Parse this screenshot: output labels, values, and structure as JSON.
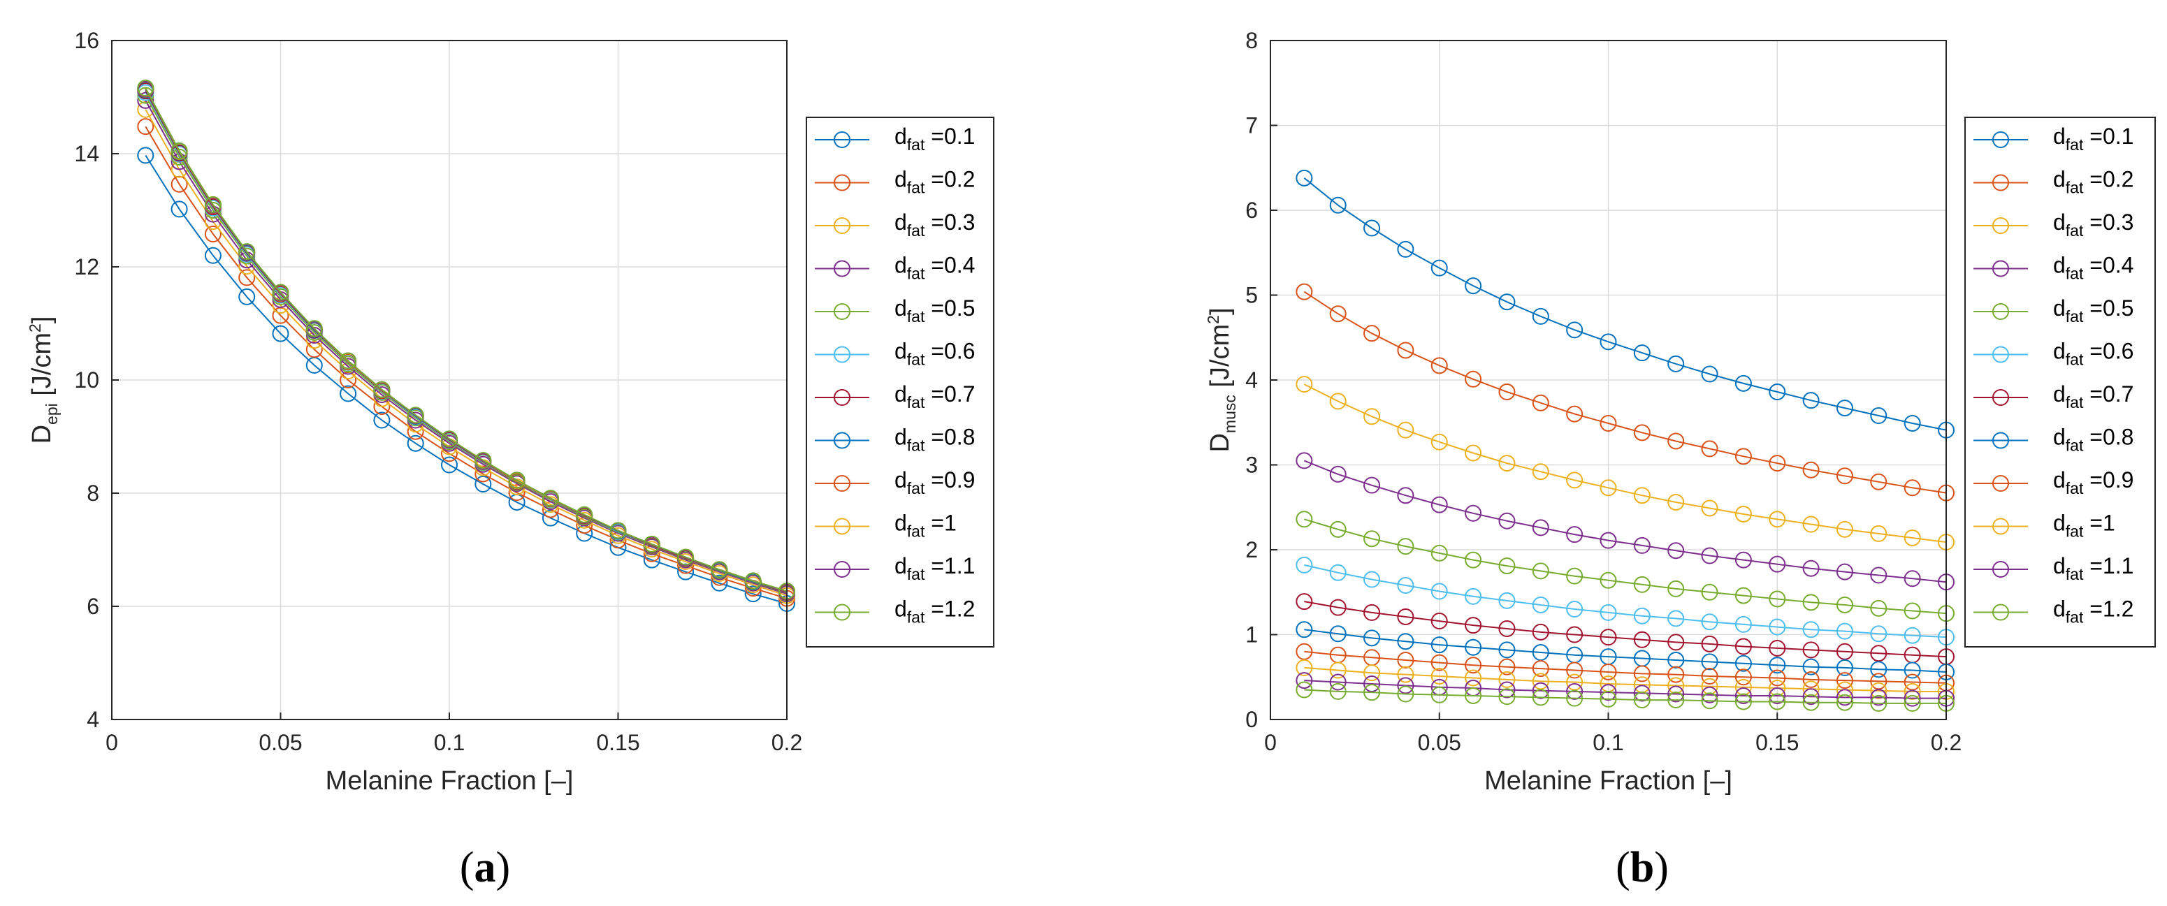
{
  "chart_data": [
    {
      "type": "line",
      "panel_label": "a",
      "xlabel": "Melanine Fraction [–]",
      "ylabel": {
        "main": "D",
        "sub": "epi",
        "unit": " [J/cm",
        "sup": "2",
        "close": "]"
      },
      "xlim": [
        0,
        0.2
      ],
      "ylim": [
        4,
        16
      ],
      "xticks": [
        0,
        0.05,
        0.1,
        0.15,
        0.2
      ],
      "xtick_labels": [
        "0",
        "0.05",
        "0.1",
        "0.15",
        "0.2"
      ],
      "yticks": [
        4,
        6,
        8,
        10,
        12,
        14,
        16
      ],
      "ytick_labels": [
        "4",
        "6",
        "8",
        "10",
        "12",
        "14",
        "16"
      ],
      "grid": true,
      "marker": "circle",
      "legend_position": "right-outside",
      "x": [
        0.01,
        0.02,
        0.03,
        0.04,
        0.05,
        0.06,
        0.07,
        0.08,
        0.09,
        0.1,
        0.11,
        0.12,
        0.13,
        0.14,
        0.15,
        0.16,
        0.17,
        0.18,
        0.19,
        0.2
      ],
      "series": [
        {
          "name": "d_fat=0.1",
          "label_main": "d",
          "label_sub": "fat",
          "label_value": " =0.1",
          "color": "#0072BD",
          "values": [
            13.97,
            13.02,
            12.2,
            11.47,
            10.82,
            10.26,
            9.76,
            9.29,
            8.88,
            8.5,
            8.16,
            7.84,
            7.56,
            7.29,
            7.04,
            6.82,
            6.61,
            6.41,
            6.22,
            6.05
          ]
        },
        {
          "name": "d_fat=0.2",
          "label_main": "d",
          "label_sub": "fat",
          "label_value": " =0.2",
          "color": "#D95319",
          "values": [
            14.48,
            13.46,
            12.58,
            11.81,
            11.14,
            10.54,
            10.0,
            9.53,
            9.09,
            8.7,
            8.34,
            8.01,
            7.71,
            7.43,
            7.17,
            6.93,
            6.72,
            6.51,
            6.32,
            6.14
          ]
        },
        {
          "name": "d_fat=0.3",
          "label_main": "d",
          "label_sub": "fat",
          "label_value": " =0.3",
          "color": "#EDB120",
          "values": [
            14.78,
            13.72,
            12.8,
            12.01,
            11.32,
            10.7,
            10.16,
            9.67,
            9.22,
            8.82,
            8.45,
            8.11,
            7.8,
            7.52,
            7.25,
            7.01,
            6.79,
            6.58,
            6.38,
            6.19
          ]
        },
        {
          "name": "d_fat=0.4",
          "label_main": "d",
          "label_sub": "fat",
          "label_value": " =0.4",
          "color": "#7E2F8E",
          "values": [
            14.94,
            13.86,
            12.93,
            12.12,
            11.42,
            10.79,
            10.24,
            9.74,
            9.29,
            8.88,
            8.51,
            8.17,
            7.85,
            7.56,
            7.29,
            7.05,
            6.82,
            6.61,
            6.41,
            6.22
          ]
        },
        {
          "name": "d_fat=0.5",
          "label_main": "d",
          "label_sub": "fat",
          "label_value": " =0.5",
          "color": "#77AC30",
          "values": [
            15.03,
            13.94,
            13.0,
            12.19,
            11.47,
            10.84,
            10.28,
            9.78,
            9.33,
            8.91,
            8.54,
            8.19,
            7.88,
            7.58,
            7.31,
            7.07,
            6.84,
            6.63,
            6.43,
            6.24
          ]
        },
        {
          "name": "d_fat=0.6",
          "label_main": "d",
          "label_sub": "fat",
          "label_value": " =0.6",
          "color": "#4DBEEE",
          "values": [
            15.08,
            13.99,
            13.04,
            12.22,
            11.5,
            10.87,
            10.31,
            9.8,
            9.35,
            8.93,
            8.55,
            8.21,
            7.89,
            7.6,
            7.32,
            7.08,
            6.85,
            6.64,
            6.44,
            6.25
          ]
        },
        {
          "name": "d_fat=0.7",
          "label_main": "d",
          "label_sub": "fat",
          "label_value": " =0.7",
          "color": "#A2142F",
          "values": [
            15.11,
            14.01,
            13.06,
            12.24,
            11.52,
            10.88,
            10.32,
            9.81,
            9.36,
            8.94,
            8.56,
            8.21,
            7.9,
            7.6,
            7.33,
            7.08,
            6.85,
            6.64,
            6.44,
            6.25
          ]
        },
        {
          "name": "d_fat=0.8",
          "label_main": "d",
          "label_sub": "fat",
          "label_value": " =0.8",
          "color": "#0072BD",
          "values": [
            15.13,
            14.03,
            13.08,
            12.25,
            11.53,
            10.89,
            10.33,
            9.82,
            9.36,
            8.95,
            8.57,
            8.22,
            7.9,
            7.61,
            7.33,
            7.09,
            6.86,
            6.64,
            6.44,
            6.26
          ]
        },
        {
          "name": "d_fat=0.9",
          "label_main": "d",
          "label_sub": "fat",
          "label_value": " =0.9",
          "color": "#D95319",
          "values": [
            15.14,
            14.04,
            13.08,
            12.26,
            11.53,
            10.9,
            10.33,
            9.82,
            9.37,
            8.95,
            8.57,
            8.22,
            7.9,
            7.61,
            7.34,
            7.09,
            6.86,
            6.65,
            6.45,
            6.26
          ]
        },
        {
          "name": "d_fat=1",
          "label_main": "d",
          "label_sub": "fat",
          "label_value": " =1",
          "color": "#EDB120",
          "values": [
            15.15,
            14.04,
            13.09,
            12.26,
            11.54,
            10.9,
            10.33,
            9.83,
            9.37,
            8.95,
            8.57,
            8.22,
            7.91,
            7.61,
            7.34,
            7.09,
            6.86,
            6.65,
            6.45,
            6.26
          ]
        },
        {
          "name": "d_fat=1.1",
          "label_main": "d",
          "label_sub": "fat",
          "label_value": " =1.1",
          "color": "#7E2F8E",
          "values": [
            15.15,
            14.05,
            13.09,
            12.26,
            11.54,
            10.9,
            10.34,
            9.83,
            9.37,
            8.95,
            8.57,
            8.23,
            7.91,
            7.61,
            7.34,
            7.09,
            6.86,
            6.65,
            6.45,
            6.26
          ]
        },
        {
          "name": "d_fat=1.2",
          "label_main": "d",
          "label_sub": "fat",
          "label_value": " =1.2",
          "color": "#77AC30",
          "values": [
            15.16,
            14.05,
            13.1,
            12.27,
            11.55,
            10.91,
            10.34,
            9.83,
            9.38,
            8.96,
            8.58,
            8.23,
            7.91,
            7.62,
            7.34,
            7.1,
            6.87,
            6.65,
            6.45,
            6.27
          ]
        }
      ]
    },
    {
      "type": "line",
      "panel_label": "b",
      "xlabel": "Melanine Fraction [–]",
      "ylabel": {
        "main": "D",
        "sub": "musc",
        "unit": " [J/cm",
        "sup": "2",
        "close": "]"
      },
      "xlim": [
        0,
        0.2
      ],
      "ylim": [
        0,
        8
      ],
      "xticks": [
        0,
        0.05,
        0.1,
        0.15,
        0.2
      ],
      "xtick_labels": [
        "0",
        "0.05",
        "0.1",
        "0.15",
        "0.2"
      ],
      "yticks": [
        0,
        1,
        2,
        3,
        4,
        5,
        6,
        7,
        8
      ],
      "ytick_labels": [
        "0",
        "1",
        "2",
        "3",
        "4",
        "5",
        "6",
        "7",
        "8"
      ],
      "grid": true,
      "marker": "circle",
      "legend_position": "right-outside",
      "x": [
        0.01,
        0.02,
        0.03,
        0.04,
        0.05,
        0.06,
        0.07,
        0.08,
        0.09,
        0.1,
        0.11,
        0.12,
        0.13,
        0.14,
        0.15,
        0.16,
        0.17,
        0.18,
        0.19,
        0.2
      ],
      "series": [
        {
          "name": "d_fat=0.1",
          "label_main": "d",
          "label_sub": "fat",
          "label_value": " =0.1",
          "color": "#0072BD",
          "values": [
            6.38,
            6.06,
            5.79,
            5.54,
            5.32,
            5.11,
            4.92,
            4.75,
            4.59,
            4.45,
            4.32,
            4.19,
            4.07,
            3.96,
            3.86,
            3.76,
            3.67,
            3.58,
            3.49,
            3.41
          ]
        },
        {
          "name": "d_fat=0.2",
          "label_main": "d",
          "label_sub": "fat",
          "label_value": " =0.2",
          "color": "#D95319",
          "values": [
            5.04,
            4.78,
            4.55,
            4.35,
            4.17,
            4.01,
            3.86,
            3.73,
            3.6,
            3.49,
            3.38,
            3.28,
            3.19,
            3.1,
            3.02,
            2.94,
            2.87,
            2.8,
            2.73,
            2.67
          ]
        },
        {
          "name": "d_fat=0.3",
          "label_main": "d",
          "label_sub": "fat",
          "label_value": " =0.3",
          "color": "#EDB120",
          "values": [
            3.95,
            3.75,
            3.57,
            3.41,
            3.27,
            3.14,
            3.02,
            2.92,
            2.82,
            2.73,
            2.64,
            2.56,
            2.49,
            2.42,
            2.36,
            2.3,
            2.24,
            2.19,
            2.14,
            2.09
          ]
        },
        {
          "name": "d_fat=0.4",
          "label_main": "d",
          "label_sub": "fat",
          "label_value": " =0.4",
          "color": "#7E2F8E",
          "values": [
            3.05,
            2.89,
            2.76,
            2.64,
            2.53,
            2.43,
            2.34,
            2.26,
            2.18,
            2.11,
            2.05,
            1.99,
            1.93,
            1.88,
            1.83,
            1.78,
            1.74,
            1.7,
            1.66,
            1.62
          ]
        },
        {
          "name": "d_fat=0.5",
          "label_main": "d",
          "label_sub": "fat",
          "label_value": " =0.5",
          "color": "#77AC30",
          "values": [
            2.36,
            2.24,
            2.13,
            2.04,
            1.96,
            1.88,
            1.81,
            1.75,
            1.69,
            1.64,
            1.59,
            1.54,
            1.5,
            1.46,
            1.42,
            1.38,
            1.35,
            1.31,
            1.28,
            1.25
          ]
        },
        {
          "name": "d_fat=0.6",
          "label_main": "d",
          "label_sub": "fat",
          "label_value": " =0.6",
          "color": "#4DBEEE",
          "values": [
            1.82,
            1.73,
            1.65,
            1.58,
            1.51,
            1.45,
            1.4,
            1.35,
            1.3,
            1.26,
            1.22,
            1.19,
            1.15,
            1.12,
            1.09,
            1.06,
            1.04,
            1.01,
            0.99,
            0.97
          ]
        },
        {
          "name": "d_fat=0.7",
          "label_main": "d",
          "label_sub": "fat",
          "label_value": " =0.7",
          "color": "#A2142F",
          "values": [
            1.39,
            1.32,
            1.26,
            1.21,
            1.16,
            1.11,
            1.07,
            1.03,
            1.0,
            0.97,
            0.94,
            0.91,
            0.89,
            0.86,
            0.84,
            0.82,
            0.8,
            0.78,
            0.76,
            0.74
          ]
        },
        {
          "name": "d_fat=0.8",
          "label_main": "d",
          "label_sub": "fat",
          "label_value": " =0.8",
          "color": "#0072BD",
          "values": [
            1.06,
            1.01,
            0.96,
            0.92,
            0.88,
            0.85,
            0.82,
            0.79,
            0.76,
            0.74,
            0.72,
            0.7,
            0.68,
            0.66,
            0.64,
            0.62,
            0.61,
            0.59,
            0.58,
            0.56
          ]
        },
        {
          "name": "d_fat=0.9",
          "label_main": "d",
          "label_sub": "fat",
          "label_value": " =0.9",
          "color": "#D95319",
          "values": [
            0.8,
            0.76,
            0.73,
            0.7,
            0.67,
            0.64,
            0.62,
            0.6,
            0.58,
            0.56,
            0.54,
            0.53,
            0.51,
            0.5,
            0.49,
            0.47,
            0.46,
            0.45,
            0.44,
            0.43
          ]
        },
        {
          "name": "d_fat=1",
          "label_main": "d",
          "label_sub": "fat",
          "label_value": " =1",
          "color": "#EDB120",
          "values": [
            0.61,
            0.58,
            0.55,
            0.53,
            0.51,
            0.49,
            0.47,
            0.45,
            0.44,
            0.42,
            0.41,
            0.4,
            0.39,
            0.38,
            0.37,
            0.36,
            0.35,
            0.34,
            0.33,
            0.33
          ]
        },
        {
          "name": "d_fat=1.1",
          "label_main": "d",
          "label_sub": "fat",
          "label_value": " =1.1",
          "color": "#7E2F8E",
          "values": [
            0.46,
            0.44,
            0.42,
            0.4,
            0.38,
            0.37,
            0.35,
            0.34,
            0.33,
            0.32,
            0.31,
            0.3,
            0.29,
            0.28,
            0.28,
            0.27,
            0.26,
            0.26,
            0.25,
            0.25
          ]
        },
        {
          "name": "d_fat=1.2",
          "label_main": "d",
          "label_sub": "fat",
          "label_value": " =1.2",
          "color": "#77AC30",
          "values": [
            0.35,
            0.33,
            0.32,
            0.3,
            0.29,
            0.28,
            0.27,
            0.26,
            0.25,
            0.24,
            0.23,
            0.23,
            0.22,
            0.21,
            0.21,
            0.2,
            0.2,
            0.19,
            0.19,
            0.19
          ]
        }
      ]
    }
  ]
}
